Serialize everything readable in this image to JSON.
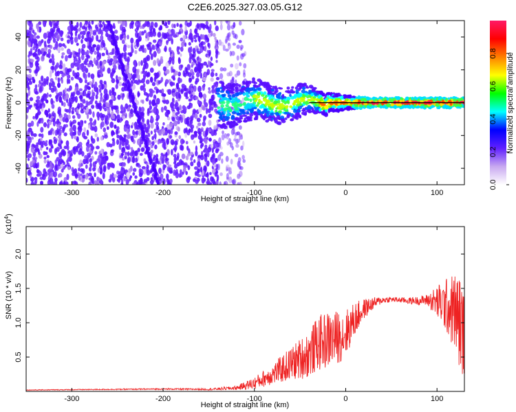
{
  "chart_data": [
    {
      "type": "heatmap",
      "title": "C2E6.2025.327.03.05.G12",
      "xlabel": "Height of straight line (km)",
      "ylabel": "Frequency (Hz)",
      "xlim": [
        -350,
        130
      ],
      "ylim": [
        -50,
        50
      ],
      "x_ticks": [
        -300,
        -200,
        -100,
        0,
        100
      ],
      "x_tick_labels": [
        "-300",
        "-200",
        "-100",
        "0",
        "100"
      ],
      "y_ticks": [
        -40,
        -20,
        0,
        20,
        40
      ],
      "y_tick_labels": [
        "-40",
        "-20",
        "0",
        "20",
        "40"
      ],
      "colorbar": {
        "label": "Normalized spectral amplitude",
        "range": [
          0,
          1
        ],
        "ticks": [
          0.0,
          0.2,
          0.4,
          0.6,
          0.8
        ],
        "tick_labels": [
          "0.0",
          "0.2",
          "0.4",
          "0.6",
          "0.8"
        ],
        "colors": [
          "#ffffff",
          "#c8a8f0",
          "#6020ff",
          "#0000ff",
          "#00ffff",
          "#00ff00",
          "#ffff00",
          "#ff8000",
          "#ff0000",
          "#ff1a66"
        ]
      },
      "features": {
        "noise_region_x": [
          -350,
          -110
        ],
        "diagonal_trace": {
          "x_start": -260,
          "x_end": -205,
          "y_start": 50,
          "y_end": -50
        },
        "signal_band": {
          "x_start": -140,
          "x_end": 130,
          "center_hz": 0
        },
        "signal_band_width_hz": [
          [
            -140,
            14
          ],
          [
            -90,
            12
          ],
          [
            -50,
            10
          ],
          [
            -20,
            6
          ],
          [
            20,
            3
          ],
          [
            130,
            3
          ]
        ]
      }
    },
    {
      "type": "line",
      "title": "",
      "xlabel": "Height of straight line (km)",
      "ylabel": "SNR (10 * v/v)",
      "y_scale_label": "(x10",
      "y_scale_exp": "4",
      "xlim": [
        -350,
        130
      ],
      "ylim": [
        0,
        24000
      ],
      "x_ticks": [
        -300,
        -200,
        -100,
        0,
        100
      ],
      "x_tick_labels": [
        "-300",
        "-200",
        "-100",
        "0",
        "100"
      ],
      "y_ticks": [
        5000,
        10000,
        15000,
        20000
      ],
      "y_tick_labels": [
        "0.5",
        "1.0",
        "1.5",
        "2.0"
      ],
      "series": [
        {
          "name": "SNR",
          "color": "#ee2222",
          "x": [
            -350,
            -300,
            -250,
            -200,
            -150,
            -120,
            -100,
            -80,
            -60,
            -40,
            -30,
            -20,
            -10,
            0,
            10,
            20,
            30,
            40,
            50,
            60,
            70,
            80,
            90,
            100,
            110,
            120,
            125,
            130
          ],
          "y": [
            200,
            250,
            300,
            350,
            300,
            500,
            1200,
            2500,
            4000,
            5500,
            7000,
            7500,
            7800,
            8500,
            10500,
            12000,
            12800,
            13300,
            13400,
            13300,
            13200,
            13200,
            13300,
            13000,
            12500,
            11500,
            10000,
            8000
          ],
          "noise_amplitude": [
            50,
            60,
            80,
            100,
            120,
            300,
            900,
            1500,
            2500,
            3500,
            4000,
            4200,
            4000,
            3500,
            2500,
            1500,
            900,
            500,
            400,
            400,
            500,
            600,
            900,
            2500,
            4000,
            6000,
            7000,
            6000
          ]
        }
      ]
    }
  ]
}
